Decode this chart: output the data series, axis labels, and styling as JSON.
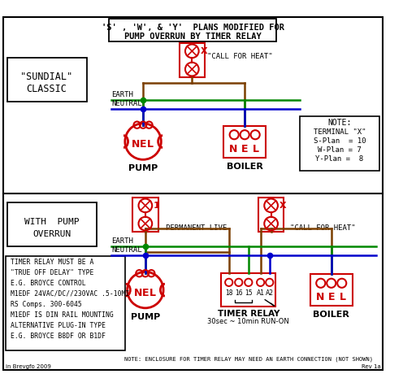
{
  "title_line1": "'S' , 'W', & 'Y'  PLANS MODIFIED FOR",
  "title_line2": "PUMP OVERRUN BY TIMER RELAY",
  "bg_color": "#ffffff",
  "red": "#cc0000",
  "green": "#008800",
  "blue": "#0000cc",
  "brown": "#7B3F00",
  "black": "#000000",
  "sundial_label1": "\"SUNDIAL\"",
  "sundial_label2": "CLASSIC",
  "with_pump_label1": "WITH  PUMP",
  "with_pump_label2": "OVERRUN",
  "note_title": "NOTE:",
  "note_line1": "TERMINAL \"X\"",
  "note_line2": "S-Plan  = 10",
  "note_line3": "W-Plan = 7",
  "note_line4": "Y-Plan =  8",
  "call_for_heat": "\"CALL FOR HEAT\"",
  "permanent_live": "PERMANENT LIVE",
  "earth_label": "EARTH",
  "neutral_label": "NEUTRAL",
  "pump_label": "PUMP",
  "boiler_label": "BOILER",
  "timer_relay_label": "TIMER RELAY",
  "timer_relay_sub": "30sec ~ 10min RUN-ON",
  "bottom_note": "NOTE: ENCLOSURE FOR TIMER RELAY MAY NEED AN EARTH CONNECTION (NOT SHOWN)",
  "copyright": "in Brevgfo 2009",
  "rev": "Rev 1a",
  "timer_box_lines": [
    "TIMER RELAY MUST BE A",
    "\"TRUE OFF DELAY\" TYPE",
    "E.G. BROYCE CONTROL",
    "M1EDF 24VAC/DC//230VAC .5-10MI",
    "RS Comps. 300-6045",
    "M1EDF IS DIN RAIL MOUNTING",
    "ALTERNATIVE PLUG-IN TYPE",
    "E.G. BROYCE B8DF OR B1DF"
  ]
}
